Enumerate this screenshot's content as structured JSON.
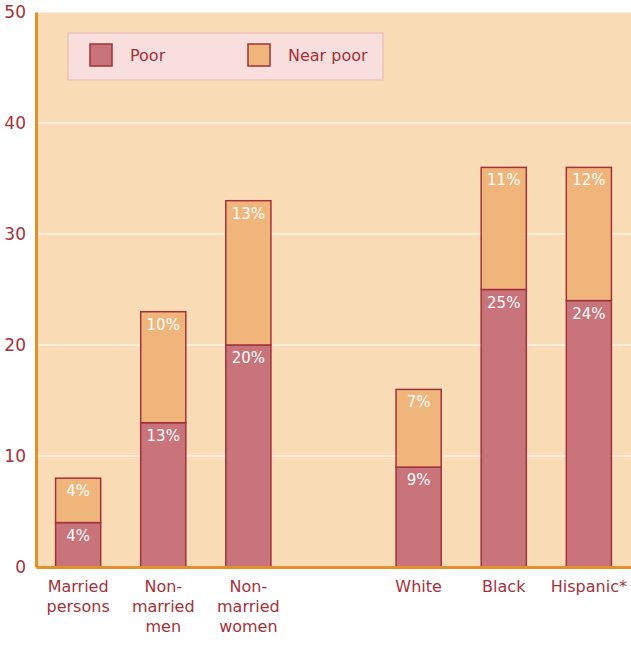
{
  "chart_data": {
    "type": "bar",
    "stacked": true,
    "data_labels": true,
    "grid": true,
    "legend": "top-left",
    "categories": [
      "Married\npersons",
      "Non-\nmarried\nmen",
      "Non-\nmarried\nwomen",
      "White",
      "Black",
      "Hispanic*"
    ],
    "series": [
      {
        "name": "Poor",
        "color": "#c9737a",
        "values": [
          4,
          13,
          20,
          9,
          25,
          24
        ],
        "value_labels": [
          "4%",
          "13%",
          "20%",
          "9%",
          "25%",
          "24%"
        ]
      },
      {
        "name": "Near poor",
        "color": "#f0b57b",
        "values": [
          4,
          10,
          13,
          7,
          11,
          12
        ],
        "value_labels": [
          "4%",
          "10%",
          "13%",
          "7%",
          "11%",
          "12%"
        ]
      }
    ],
    "ylim": [
      0,
      50
    ],
    "yticks": [
      0,
      10,
      20,
      30,
      40,
      50
    ]
  }
}
